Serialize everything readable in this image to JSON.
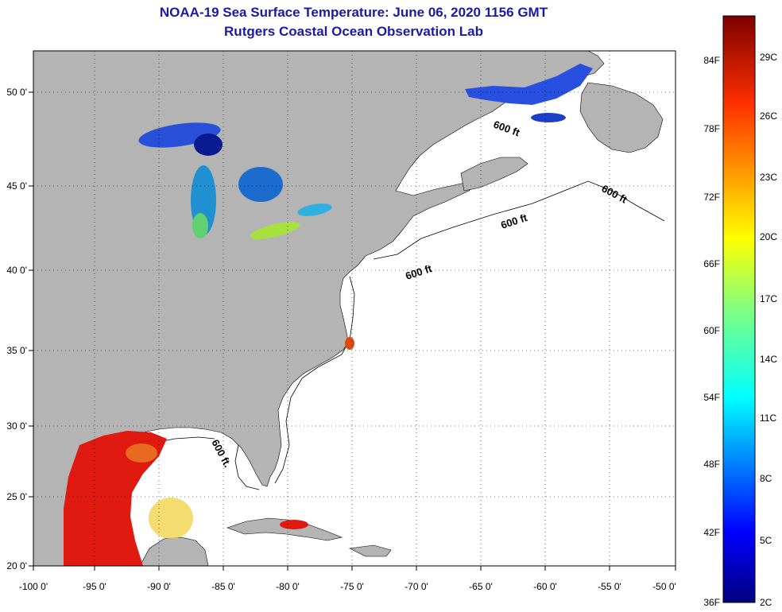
{
  "title": {
    "line1": "NOAA-19 Sea Surface Temperature:  June 06, 2020 1156 GMT",
    "line2": "Rutgers Coastal Ocean Observation Lab"
  },
  "axes": {
    "lon_labels": [
      "-100 0'",
      "-95 0'",
      "-90 0'",
      "-85 0'",
      "-80 0'",
      "-75 0'",
      "-70 0'",
      "-65 0'",
      "-60 0'",
      "-55 0'",
      "-50 0'"
    ],
    "lat_labels": [
      "50 0'",
      "45 0'",
      "40 0'",
      "35 0'",
      "30 0'",
      "25 0'",
      "20 0'"
    ]
  },
  "contour": {
    "label": "600 ft",
    "label_alt": "600 ft."
  },
  "colorbar": {
    "fahrenheit": [
      "84F",
      "78F",
      "72F",
      "66F",
      "60F",
      "54F",
      "48F",
      "42F",
      "36F"
    ],
    "celsius": [
      "29C",
      "26C",
      "23C",
      "20C",
      "17C",
      "14C",
      "11C",
      "8C",
      "5C",
      "2C"
    ]
  },
  "colors": {
    "land": "#b4b4b4",
    "title": "#1a1aa6",
    "warm": "#e01a10",
    "cold": "#1030c8"
  }
}
